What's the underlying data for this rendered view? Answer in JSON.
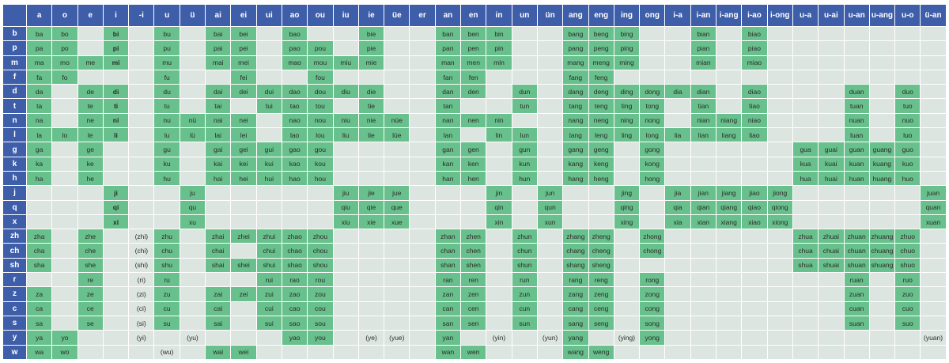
{
  "colors": {
    "header_background": "#3e5ea9",
    "cell_background": "#dde5e0",
    "syllable_background": "#68c08c"
  },
  "chart_data": {
    "type": "table",
    "columns": [
      "a",
      "o",
      "e",
      "i",
      "-i",
      "u",
      "ü",
      "ai",
      "ei",
      "ui",
      "ao",
      "ou",
      "iu",
      "ie",
      "üe",
      "er",
      "an",
      "en",
      "in",
      "un",
      "ün",
      "ang",
      "eng",
      "ing",
      "ong",
      "i-a",
      "i-an",
      "i-ang",
      "i-ao",
      "i-ong",
      "u-a",
      "u-ai",
      "u-an",
      "u-ang",
      "u-o",
      "ü-an"
    ],
    "rows": [
      {
        "initial": "b",
        "cells": [
          "ba",
          "bo",
          "",
          "bi",
          "",
          "bu",
          "",
          "bai",
          "bei",
          "",
          "bao",
          "",
          "",
          "bie",
          "",
          "",
          "ban",
          "ben",
          "bin",
          "",
          "",
          "bang",
          "beng",
          "bing",
          "",
          "",
          "bian",
          "",
          "biao",
          "",
          "",
          "",
          "",
          "",
          "",
          ""
        ]
      },
      {
        "initial": "p",
        "cells": [
          "pa",
          "po",
          "",
          "pi",
          "",
          "pu",
          "",
          "pai",
          "pei",
          "",
          "pao",
          "pou",
          "",
          "pie",
          "",
          "",
          "pan",
          "pen",
          "pin",
          "",
          "",
          "pang",
          "peng",
          "ping",
          "",
          "",
          "pian",
          "",
          "piao",
          "",
          "",
          "",
          "",
          "",
          "",
          ""
        ]
      },
      {
        "initial": "m",
        "cells": [
          "ma",
          "mo",
          "me",
          "mi",
          "",
          "mu",
          "",
          "mai",
          "mei",
          "",
          "mao",
          "mou",
          "miu",
          "mie",
          "",
          "",
          "man",
          "men",
          "min",
          "",
          "",
          "mang",
          "meng",
          "ming",
          "",
          "",
          "mian",
          "",
          "miao",
          "",
          "",
          "",
          "",
          "",
          "",
          ""
        ]
      },
      {
        "initial": "f",
        "cells": [
          "fa",
          "fo",
          "",
          "",
          "",
          "fu",
          "",
          "",
          "fei",
          "",
          "",
          "fou",
          "",
          "",
          "",
          "",
          "fan",
          "fen",
          "",
          "",
          "",
          "fang",
          "feng",
          "",
          "",
          "",
          "",
          "",
          "",
          "",
          "",
          "",
          "",
          "",
          "",
          ""
        ]
      },
      {
        "initial": "d",
        "cells": [
          "da",
          "",
          "de",
          "di",
          "",
          "du",
          "",
          "dai",
          "dei",
          "dui",
          "dao",
          "dou",
          "diu",
          "die",
          "",
          "",
          "dan",
          "den",
          "",
          "dun",
          "",
          "dang",
          "deng",
          "ding",
          "dong",
          "dia",
          "dian",
          "",
          "diao",
          "",
          "",
          "",
          "duan",
          "",
          "duo",
          ""
        ]
      },
      {
        "initial": "t",
        "cells": [
          "ta",
          "",
          "te",
          "ti",
          "",
          "tu",
          "",
          "tai",
          "",
          "tui",
          "tao",
          "tou",
          "",
          "tie",
          "",
          "",
          "tan",
          "",
          "",
          "tun",
          "",
          "tang",
          "teng",
          "ting",
          "tong",
          "",
          "tian",
          "",
          "tiao",
          "",
          "",
          "",
          "tuan",
          "",
          "tuo",
          ""
        ]
      },
      {
        "initial": "n",
        "cells": [
          "na",
          "",
          "ne",
          "ni",
          "",
          "nu",
          "nü",
          "nai",
          "nei",
          "",
          "nao",
          "nou",
          "niu",
          "nie",
          "nüe",
          "",
          "nan",
          "nen",
          "nin",
          "",
          "",
          "nang",
          "neng",
          "ning",
          "nong",
          "",
          "nian",
          "niang",
          "niao",
          "",
          "",
          "",
          "nuan",
          "",
          "nuo",
          ""
        ]
      },
      {
        "initial": "l",
        "cells": [
          "la",
          "lo",
          "le",
          "li",
          "",
          "lu",
          "lü",
          "lai",
          "lei",
          "",
          "lao",
          "lou",
          "liu",
          "lie",
          "lüe",
          "",
          "lan",
          "",
          "lin",
          "lun",
          "",
          "lang",
          "leng",
          "ling",
          "long",
          "lia",
          "lian",
          "liang",
          "liao",
          "",
          "",
          "",
          "luan",
          "",
          "luo",
          ""
        ]
      },
      {
        "initial": "g",
        "cells": [
          "ga",
          "",
          "ge",
          "",
          "",
          "gu",
          "",
          "gai",
          "gei",
          "gui",
          "gao",
          "gou",
          "",
          "",
          "",
          "",
          "gan",
          "gen",
          "",
          "gun",
          "",
          "gang",
          "geng",
          "",
          "gong",
          "",
          "",
          "",
          "",
          "",
          "gua",
          "guai",
          "guan",
          "guang",
          "guo",
          ""
        ]
      },
      {
        "initial": "k",
        "cells": [
          "ka",
          "",
          "ke",
          "",
          "",
          "ku",
          "",
          "kai",
          "kei",
          "kui",
          "kao",
          "kou",
          "",
          "",
          "",
          "",
          "kan",
          "ken",
          "",
          "kun",
          "",
          "kang",
          "keng",
          "",
          "kong",
          "",
          "",
          "",
          "",
          "",
          "kua",
          "kuai",
          "kuan",
          "kuang",
          "kuo",
          ""
        ]
      },
      {
        "initial": "h",
        "cells": [
          "ha",
          "",
          "he",
          "",
          "",
          "hu",
          "",
          "hai",
          "hei",
          "hui",
          "hao",
          "hou",
          "",
          "",
          "",
          "",
          "han",
          "hen",
          "",
          "hun",
          "",
          "hang",
          "heng",
          "",
          "hong",
          "",
          "",
          "",
          "",
          "",
          "hua",
          "huai",
          "huan",
          "huang",
          "huo",
          ""
        ]
      },
      {
        "initial": "j",
        "cells": [
          "",
          "",
          "",
          "ji",
          "",
          "",
          "ju",
          "",
          "",
          "",
          "",
          "",
          "jiu",
          "jie",
          "jue",
          "",
          "",
          "",
          "jin",
          "",
          "jun",
          "",
          "",
          "jing",
          "",
          "jia",
          "jian",
          "jiang",
          "jiao",
          "jiong",
          "",
          "",
          "",
          "",
          "",
          "juan"
        ]
      },
      {
        "initial": "q",
        "cells": [
          "",
          "",
          "",
          "qi",
          "",
          "",
          "qu",
          "",
          "",
          "",
          "",
          "",
          "qiu",
          "qie",
          "que",
          "",
          "",
          "",
          "qin",
          "",
          "qun",
          "",
          "",
          "qing",
          "",
          "qia",
          "qian",
          "qiang",
          "qiao",
          "qiong",
          "",
          "",
          "",
          "",
          "",
          "quan"
        ]
      },
      {
        "initial": "x",
        "cells": [
          "",
          "",
          "",
          "xi",
          "",
          "",
          "xu",
          "",
          "",
          "",
          "",
          "",
          "xiu",
          "xie",
          "xue",
          "",
          "",
          "",
          "xin",
          "",
          "xun",
          "",
          "",
          "xing",
          "",
          "xia",
          "xian",
          "xiang",
          "xiao",
          "xiong",
          "",
          "",
          "",
          "",
          "",
          "xuan"
        ]
      },
      {
        "initial": "zh",
        "cells": [
          "zha",
          "",
          "zhe",
          "",
          "(zhi)",
          "zhu",
          "",
          "zhai",
          "zhei",
          "zhui",
          "zhao",
          "zhou",
          "",
          "",
          "",
          "",
          "zhan",
          "zhen",
          "",
          "zhun",
          "",
          "zhang",
          "zheng",
          "",
          "zhong",
          "",
          "",
          "",
          "",
          "",
          "zhua",
          "zhuai",
          "zhuan",
          "zhuang",
          "zhuo",
          ""
        ]
      },
      {
        "initial": "ch",
        "cells": [
          "cha",
          "",
          "che",
          "",
          "(chi)",
          "chu",
          "",
          "chai",
          "",
          "chui",
          "chao",
          "chou",
          "",
          "",
          "",
          "",
          "chan",
          "chen",
          "",
          "chun",
          "",
          "chang",
          "cheng",
          "",
          "chong",
          "",
          "",
          "",
          "",
          "",
          "chua",
          "chuai",
          "chuan",
          "chuang",
          "chuo",
          ""
        ]
      },
      {
        "initial": "sh",
        "cells": [
          "sha",
          "",
          "she",
          "",
          "(shi)",
          "shu",
          "",
          "shai",
          "shei",
          "shui",
          "shao",
          "shou",
          "",
          "",
          "",
          "",
          "shan",
          "shen",
          "",
          "shun",
          "",
          "shang",
          "sheng",
          "",
          "",
          "",
          "",
          "",
          "",
          "",
          "shua",
          "shuai",
          "shuan",
          "shuang",
          "shuo",
          ""
        ]
      },
      {
        "initial": "r",
        "cells": [
          "",
          "",
          "re",
          "",
          "(ri)",
          "ru",
          "",
          "",
          "",
          "rui",
          "rao",
          "rou",
          "",
          "",
          "",
          "",
          "ran",
          "ren",
          "",
          "run",
          "",
          "rang",
          "reng",
          "",
          "rong",
          "",
          "",
          "",
          "",
          "",
          "",
          "",
          "ruan",
          "",
          "ruo",
          ""
        ]
      },
      {
        "initial": "z",
        "cells": [
          "za",
          "",
          "ze",
          "",
          "(zi)",
          "zu",
          "",
          "zai",
          "zei",
          "zui",
          "zao",
          "zou",
          "",
          "",
          "",
          "",
          "zan",
          "zen",
          "",
          "zun",
          "",
          "zang",
          "zeng",
          "",
          "zong",
          "",
          "",
          "",
          "",
          "",
          "",
          "",
          "zuan",
          "",
          "zuo",
          ""
        ]
      },
      {
        "initial": "c",
        "cells": [
          "ca",
          "",
          "ce",
          "",
          "(ci)",
          "cu",
          "",
          "cai",
          "",
          "cui",
          "cao",
          "cou",
          "",
          "",
          "",
          "",
          "can",
          "cen",
          "",
          "cun",
          "",
          "cang",
          "ceng",
          "",
          "cong",
          "",
          "",
          "",
          "",
          "",
          "",
          "",
          "cuan",
          "",
          "cuo",
          ""
        ]
      },
      {
        "initial": "s",
        "cells": [
          "sa",
          "",
          "se",
          "",
          "(si)",
          "su",
          "",
          "sai",
          "",
          "sui",
          "sao",
          "sou",
          "",
          "",
          "",
          "",
          "san",
          "sen",
          "",
          "sun",
          "",
          "sang",
          "seng",
          "",
          "song",
          "",
          "",
          "",
          "",
          "",
          "",
          "",
          "suan",
          "",
          "suo",
          ""
        ]
      },
      {
        "initial": "y",
        "cells": [
          "ya",
          "yo",
          "",
          "",
          "(yi)",
          "",
          "(yu)",
          "",
          "",
          "",
          "yao",
          "you",
          "",
          "(ye)",
          "(yue)",
          "",
          "yan",
          "",
          "(yin)",
          "",
          "(yun)",
          "yang",
          "",
          "(ying)",
          "yong",
          "",
          "",
          "",
          "",
          "",
          "",
          "",
          "",
          "",
          "",
          "(yuan)"
        ]
      },
      {
        "initial": "w",
        "cells": [
          "wa",
          "wo",
          "",
          "",
          "",
          "(wu)",
          "",
          "wai",
          "wei",
          "",
          "",
          "",
          "",
          "",
          "",
          "",
          "wan",
          "wen",
          "",
          "",
          "",
          "wang",
          "weng",
          "",
          "",
          "",
          "",
          "",
          "",
          "",
          "",
          "",
          "",
          "",
          "",
          ""
        ]
      }
    ]
  }
}
